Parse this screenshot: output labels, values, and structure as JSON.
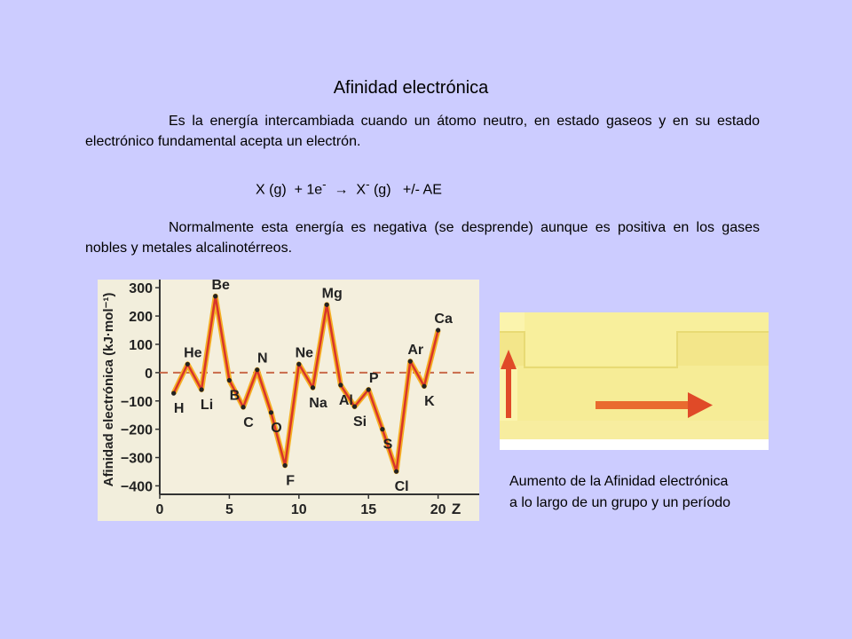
{
  "slide": {
    "title": "Afinidad electrónica",
    "para1": "Es la energía intercambiada cuando un átomo neutro, en estado gaseos y en su estado electrónico fundamental acepta un electrón.",
    "equation": {
      "part1": "X (g)  + 1e",
      "sup1": "-",
      "arrow": "  →  X",
      "sup2": "-",
      "part2": " (g)   +/- AE"
    },
    "para2": "Normalmente esta energía es negativa (se desprende) aunque es positiva en los gases nobles y metales alcalinotérreos.",
    "caption_line1": "Aumento de la Afinidad electrónica",
    "caption_line2": "a lo largo de un grupo y un período"
  },
  "colors": {
    "background": "#ccccff",
    "line": "#d8352a",
    "line_glow": "#f5b025",
    "zero_line": "#c96a4a",
    "arrow_red": "#e04a28",
    "diagram_yellow": "#fbf3a2"
  },
  "chart_data": {
    "type": "line",
    "ylabel": "Afinidad electrónica (kJ·mol⁻¹)",
    "xlabel": "Z",
    "xlim": [
      0,
      22
    ],
    "ylim": [
      -430,
      310
    ],
    "yticks": [
      300,
      200,
      100,
      0,
      -100,
      -200,
      -300,
      -400
    ],
    "ytick_labels": [
      "300",
      "200",
      "100",
      "0",
      "−100",
      "−200",
      "−300",
      "−400"
    ],
    "xticks": [
      0,
      5,
      10,
      15,
      20
    ],
    "xtick_labels": [
      "0",
      "5",
      "10",
      "15",
      "20"
    ],
    "zero_reference_line": true,
    "series": [
      {
        "x": [
          1,
          2,
          3,
          4,
          5,
          6,
          7,
          8,
          9,
          10,
          11,
          12,
          13,
          14,
          15,
          16,
          17,
          18,
          19,
          20
        ],
        "y": [
          -73,
          30,
          -60,
          270,
          -27,
          -122,
          10,
          -141,
          -328,
          30,
          -53,
          240,
          -44,
          -120,
          -60,
          -200,
          -349,
          40,
          -48,
          150
        ],
        "point_labels": [
          "H",
          "He",
          "Li",
          "Be",
          "B",
          "C",
          "N",
          "O",
          "F",
          "Ne",
          "Na",
          "Mg",
          "Al",
          "Si",
          "P",
          "S",
          "Cl",
          "Ar",
          "K",
          "Ca"
        ]
      }
    ]
  }
}
